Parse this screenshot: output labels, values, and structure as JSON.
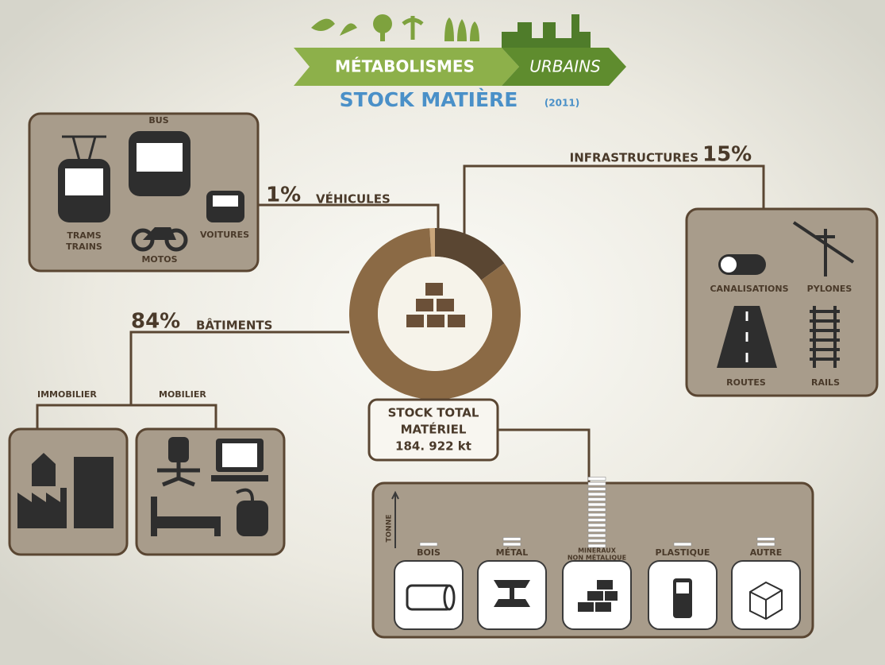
{
  "header": {
    "title_left": "MÉTABOLISMES",
    "title_right": "URBAINS",
    "subtitle": "STOCK MATIÈRE",
    "year": "(2011)"
  },
  "donut": {
    "categories": [
      "VÉHICULES",
      "INFRASTRUCTURES",
      "BÂTIMENTS"
    ],
    "values": [
      1,
      15,
      84
    ],
    "value_labels": [
      "1%",
      "15%",
      "84%"
    ],
    "colors": [
      "#c9a57a",
      "#5a4632",
      "#8b6a45"
    ]
  },
  "total": [
    "STOCK TOTAL",
    "MATÉRIEL",
    "184. 922 kt"
  ],
  "vehicles": [
    "BUS",
    "TRAMS",
    "TRAINS",
    "VOITURES",
    "MOTOS"
  ],
  "buildings": [
    "IMMOBILIER",
    "MOBILIER"
  ],
  "infrastructure": [
    "CANALISATIONS",
    "PYLONES",
    "ROUTES",
    "RAILS"
  ],
  "materials": {
    "axis_label": "TONNE",
    "names": [
      "BOIS",
      "MÉTAL",
      "MINÉRAUX",
      "PLASTIQUE",
      "AUTRE"
    ],
    "subnote": "NON MÉTALIQUE",
    "bars": [
      1,
      2,
      14,
      1,
      2
    ]
  }
}
